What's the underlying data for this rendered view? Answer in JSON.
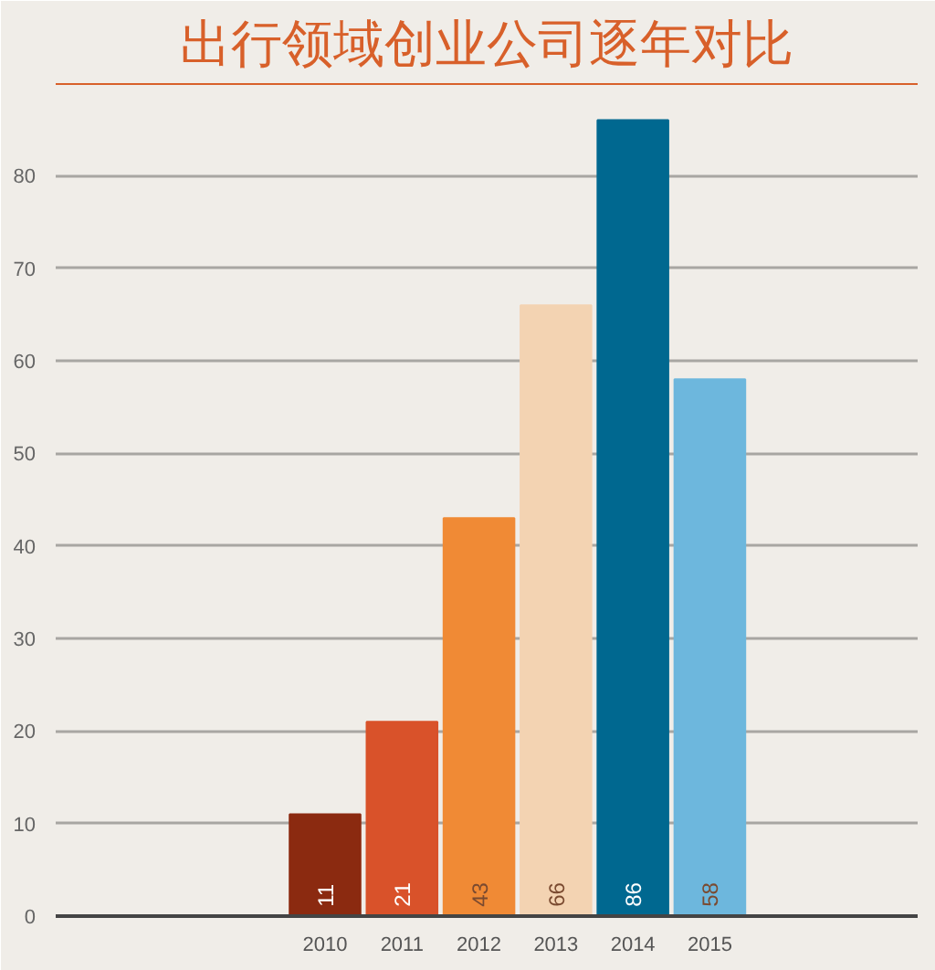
{
  "chart_data": {
    "type": "bar",
    "title": "出行领域创业公司逐年对比",
    "categories": [
      null,
      null,
      null,
      "2010",
      "2011",
      "2012",
      "2013",
      "2014",
      "2015",
      null,
      null
    ],
    "values": [
      null,
      null,
      null,
      11,
      21,
      43,
      66,
      86,
      58,
      null,
      null
    ],
    "colors": [
      "#8b2a10",
      "#8b2a10",
      "#8b2a10",
      "#8b2a10",
      "#d9522a",
      "#f08a35",
      "#f3d3b2",
      "#006890",
      "#6db7dd",
      "#6db7dd",
      "#6db7dd"
    ],
    "ylim": [
      0,
      90
    ],
    "yticks": [
      0,
      10,
      20,
      30,
      40,
      50,
      60,
      70,
      80
    ],
    "grid": "y",
    "data_labels": true
  }
}
